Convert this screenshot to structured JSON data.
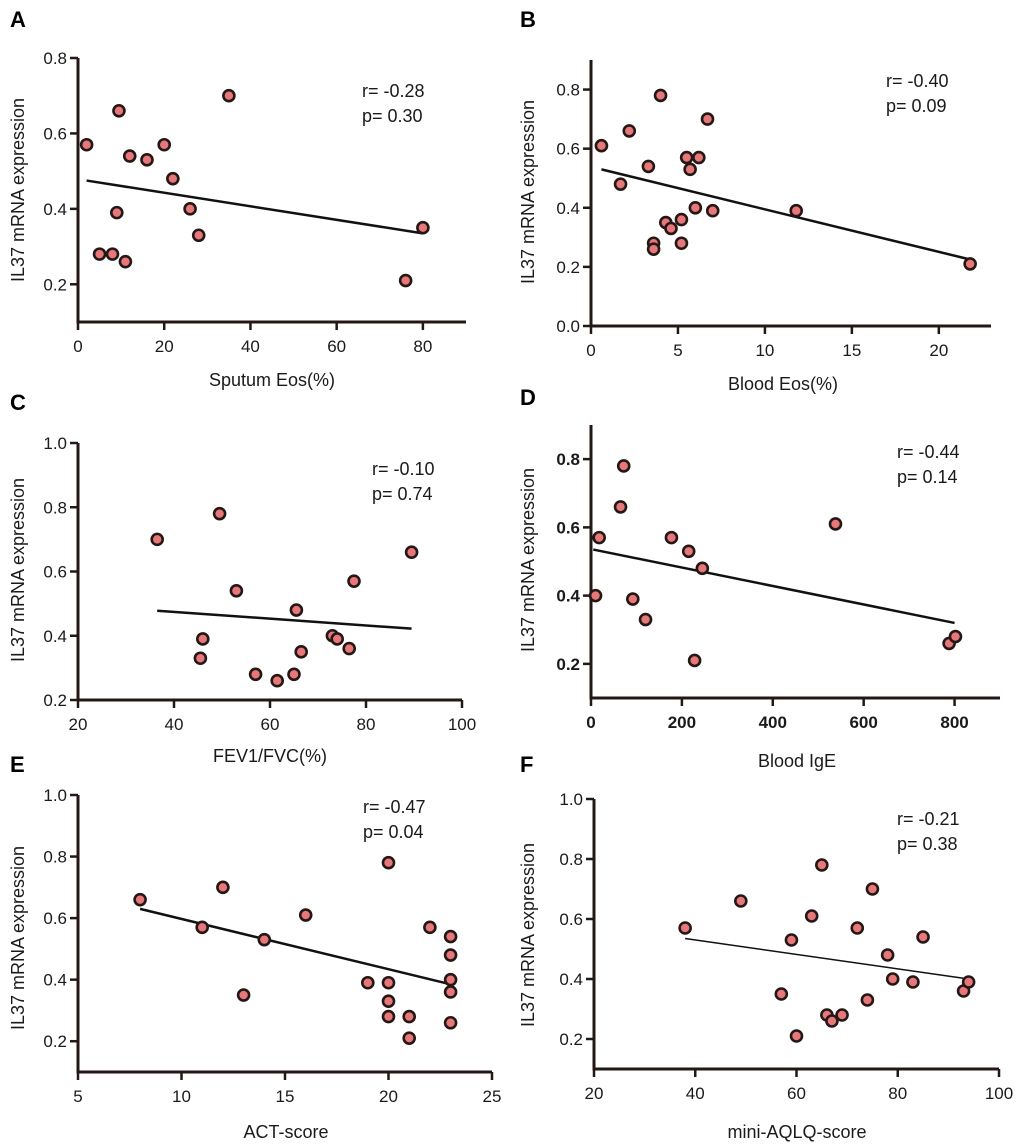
{
  "colors": {
    "point_fill": "#e8777a",
    "point_stroke": "#231815",
    "axis": "#231815",
    "line": "#111111"
  },
  "chart_data": [
    {
      "panel": "A",
      "type": "scatter",
      "xlabel": "Sputum Eos(%)",
      "ylabel": "IL37 mRNA expression",
      "xlim": [
        0,
        90
      ],
      "ylim": [
        0.1,
        0.8
      ],
      "xticks": [
        0,
        20,
        40,
        60,
        80
      ],
      "yticks": [
        0.2,
        0.4,
        0.6,
        0.8
      ],
      "xtick_labels": [
        "0",
        "20",
        "40",
        "60",
        "80"
      ],
      "ytick_labels": [
        "0.2",
        "0.4",
        "0.6",
        "0.8"
      ],
      "r": "r= -0.28",
      "p": "p= 0.30",
      "fit": [
        [
          2,
          0.475
        ],
        [
          80,
          0.335
        ]
      ],
      "points": [
        [
          2,
          0.57
        ],
        [
          5,
          0.28
        ],
        [
          8,
          0.28
        ],
        [
          9,
          0.39
        ],
        [
          9.5,
          0.66
        ],
        [
          11,
          0.26
        ],
        [
          12,
          0.54
        ],
        [
          16,
          0.53
        ],
        [
          20,
          0.57
        ],
        [
          22,
          0.48
        ],
        [
          26,
          0.4
        ],
        [
          28,
          0.33
        ],
        [
          35,
          0.7
        ],
        [
          76,
          0.21
        ],
        [
          80,
          0.35
        ]
      ]
    },
    {
      "panel": "B",
      "type": "scatter",
      "xlabel": "Blood Eos(%)",
      "ylabel": "IL37 mRNA expression",
      "xlim": [
        0,
        23
      ],
      "ylim": [
        0.0,
        0.9
      ],
      "xticks": [
        0,
        5,
        10,
        15,
        20
      ],
      "yticks": [
        0.0,
        0.2,
        0.4,
        0.6,
        0.8
      ],
      "xtick_labels": [
        "0",
        "5",
        "10",
        "15",
        "20"
      ],
      "ytick_labels": [
        "0.0",
        "0.2",
        "0.4",
        "0.6",
        "0.8"
      ],
      "r": "r= -0.40",
      "p": "p= 0.09",
      "fit": [
        [
          0.6,
          0.53
        ],
        [
          21.8,
          0.225
        ]
      ],
      "points": [
        [
          0.6,
          0.61
        ],
        [
          1.7,
          0.48
        ],
        [
          2.2,
          0.66
        ],
        [
          3.3,
          0.54
        ],
        [
          3.6,
          0.28
        ],
        [
          3.6,
          0.26
        ],
        [
          4.0,
          0.78
        ],
        [
          4.3,
          0.35
        ],
        [
          4.6,
          0.33
        ],
        [
          5.2,
          0.36
        ],
        [
          5.2,
          0.28
        ],
        [
          5.5,
          0.57
        ],
        [
          5.7,
          0.53
        ],
        [
          6.0,
          0.4
        ],
        [
          6.2,
          0.57
        ],
        [
          6.7,
          0.7
        ],
        [
          7.0,
          0.39
        ],
        [
          11.8,
          0.39
        ],
        [
          21.8,
          0.21
        ]
      ]
    },
    {
      "panel": "C",
      "type": "scatter",
      "xlabel": "FEV1/FVC(%)",
      "ylabel": "IL37 mRNA expression",
      "xlim": [
        20,
        100
      ],
      "ylim": [
        0.2,
        1.0
      ],
      "xticks": [
        20,
        40,
        60,
        80,
        100
      ],
      "yticks": [
        0.2,
        0.4,
        0.6,
        0.8,
        1.0
      ],
      "xtick_labels": [
        "20",
        "40",
        "60",
        "80",
        "100"
      ],
      "ytick_labels": [
        "0.2",
        "0.4",
        "0.6",
        "0.8",
        "1.0"
      ],
      "r": "r= -0.10",
      "p": "p= 0.74",
      "fit": [
        [
          36.5,
          0.478
        ],
        [
          89.5,
          0.422
        ]
      ],
      "points": [
        [
          36.5,
          0.7
        ],
        [
          45.5,
          0.33
        ],
        [
          46,
          0.39
        ],
        [
          49.5,
          0.78
        ],
        [
          53,
          0.54
        ],
        [
          57,
          0.28
        ],
        [
          61.5,
          0.26
        ],
        [
          65,
          0.28
        ],
        [
          65.5,
          0.48
        ],
        [
          66.5,
          0.35
        ],
        [
          73,
          0.4
        ],
        [
          74,
          0.39
        ],
        [
          76.5,
          0.36
        ],
        [
          77.5,
          0.57
        ],
        [
          89.5,
          0.66
        ]
      ]
    },
    {
      "panel": "D",
      "type": "scatter",
      "xlabel": "Blood IgE",
      "ylabel": "IL37 mRNA expression",
      "xlim": [
        0,
        900
      ],
      "ylim": [
        0.1,
        0.9
      ],
      "xticks": [
        0,
        200,
        400,
        600,
        800
      ],
      "yticks": [
        0.2,
        0.4,
        0.6,
        0.8
      ],
      "xtick_labels": [
        "0",
        "200",
        "400",
        "600",
        "800"
      ],
      "ytick_labels": [
        "0.2",
        "0.4",
        "0.6",
        "0.8"
      ],
      "bold_ticks": true,
      "r": "r= -0.44",
      "p": "p= 0.14",
      "fit": [
        [
          5,
          0.535
        ],
        [
          800,
          0.32
        ]
      ],
      "points": [
        [
          10,
          0.4
        ],
        [
          18,
          0.57
        ],
        [
          65,
          0.66
        ],
        [
          72,
          0.78
        ],
        [
          92,
          0.39
        ],
        [
          120,
          0.33
        ],
        [
          177,
          0.57
        ],
        [
          215,
          0.53
        ],
        [
          228,
          0.21
        ],
        [
          245,
          0.48
        ],
        [
          538,
          0.61
        ],
        [
          788,
          0.26
        ],
        [
          802,
          0.28
        ]
      ]
    },
    {
      "panel": "E",
      "type": "scatter",
      "xlabel": "ACT-score",
      "ylabel": "IL37 mRNA expression",
      "xlim": [
        5,
        25
      ],
      "ylim": [
        0.1,
        1.0
      ],
      "xticks": [
        5,
        10,
        15,
        20,
        25
      ],
      "yticks": [
        0.2,
        0.4,
        0.6,
        0.8,
        1.0
      ],
      "xtick_labels": [
        "5",
        "10",
        "15",
        "20",
        "25"
      ],
      "ytick_labels": [
        "0.2",
        "0.4",
        "0.6",
        "0.8",
        "1.0"
      ],
      "r": "r= -0.47",
      "p": "p= 0.04",
      "fit": [
        [
          8,
          0.63
        ],
        [
          23,
          0.385
        ]
      ],
      "points": [
        [
          8,
          0.66
        ],
        [
          11,
          0.57
        ],
        [
          12,
          0.7
        ],
        [
          13,
          0.35
        ],
        [
          14,
          0.53
        ],
        [
          16,
          0.61
        ],
        [
          19,
          0.39
        ],
        [
          20,
          0.78
        ],
        [
          20,
          0.39
        ],
        [
          20,
          0.33
        ],
        [
          20,
          0.28
        ],
        [
          21,
          0.28
        ],
        [
          21,
          0.21
        ],
        [
          22,
          0.57
        ],
        [
          23,
          0.54
        ],
        [
          23,
          0.48
        ],
        [
          23,
          0.4
        ],
        [
          23,
          0.36
        ],
        [
          23,
          0.26
        ]
      ]
    },
    {
      "panel": "F",
      "type": "scatter",
      "xlabel": "mini-AQLQ-score",
      "ylabel": "IL37 mRNA expression",
      "xlim": [
        20,
        100
      ],
      "ylim": [
        0.1,
        1.0
      ],
      "xticks": [
        20,
        40,
        60,
        80,
        100
      ],
      "yticks": [
        0.2,
        0.4,
        0.6,
        0.8,
        1.0
      ],
      "xtick_labels": [
        "20",
        "40",
        "60",
        "80",
        "100"
      ],
      "ytick_labels": [
        "0.2",
        "0.4",
        "0.6",
        "0.8",
        "1.0"
      ],
      "thin_fit": true,
      "r": "r= -0.21",
      "p": "p= 0.38",
      "fit": [
        [
          38,
          0.535
        ],
        [
          94,
          0.4
        ]
      ],
      "points": [
        [
          38,
          0.57
        ],
        [
          49,
          0.66
        ],
        [
          57,
          0.35
        ],
        [
          59,
          0.53
        ],
        [
          60,
          0.21
        ],
        [
          63,
          0.61
        ],
        [
          65,
          0.78
        ],
        [
          66,
          0.28
        ],
        [
          67,
          0.26
        ],
        [
          69,
          0.28
        ],
        [
          72,
          0.57
        ],
        [
          74,
          0.33
        ],
        [
          75,
          0.7
        ],
        [
          78,
          0.48
        ],
        [
          79,
          0.4
        ],
        [
          83,
          0.39
        ],
        [
          85,
          0.54
        ],
        [
          93,
          0.36
        ],
        [
          94,
          0.39
        ]
      ]
    }
  ]
}
